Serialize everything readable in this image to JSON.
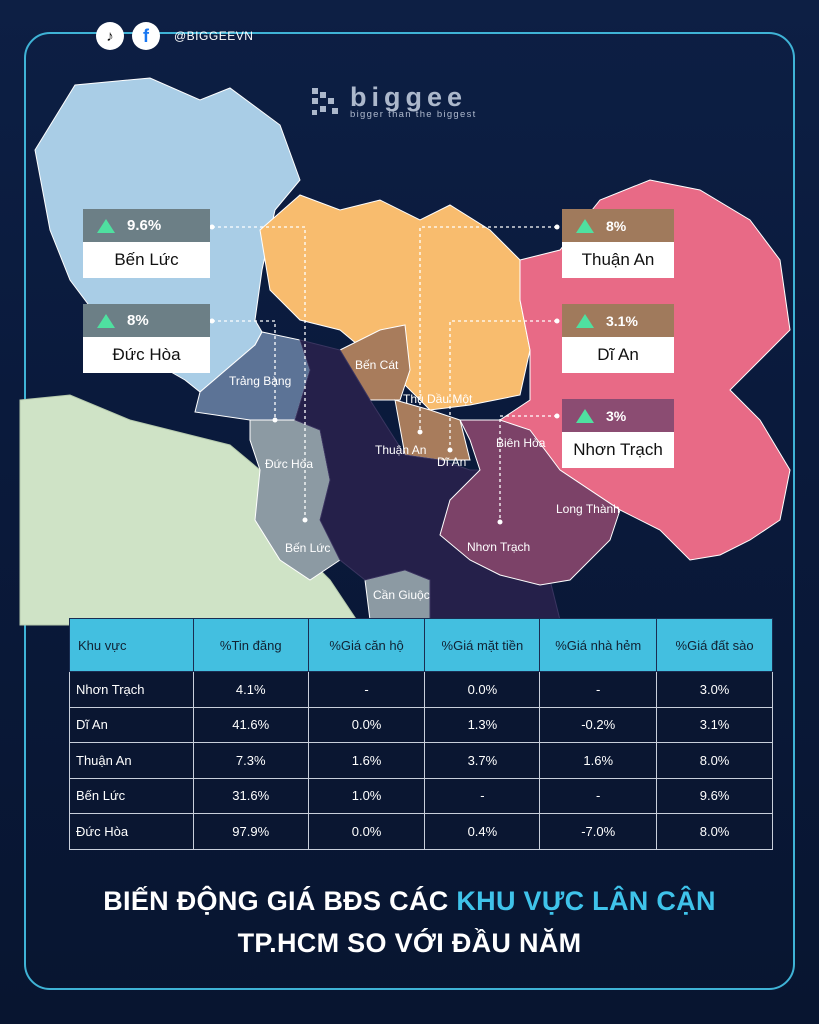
{
  "social": {
    "tiktok_icon": "tiktok-icon",
    "facebook_icon": "facebook-icon",
    "handle": "@BIGGEEVN"
  },
  "brand": {
    "name": "biggee",
    "tagline": "bigger than the biggest"
  },
  "map": {
    "labels": [
      "Trảng Bàng",
      "Bến Cát",
      "Thủ Dầu Một",
      "Thuận An",
      "Dĩ An",
      "Biên Hòa",
      "Long Thành",
      "Nhơn Trạch",
      "Đức Hòa",
      "Bến Lức",
      "Cần Giuộc"
    ],
    "colors": {
      "ben_luc_region": "#a9cde6",
      "duc_hoa_region": "#8c9aa3",
      "trang_bang_region": "#5c7396",
      "binh_duong_region": "#f8bc6e",
      "ben_cat_region": "#a87c5c",
      "hcm_region": "#25204a",
      "dong_nai_region": "#e86a86",
      "nhon_trach_region": "#7c4268",
      "long_an_region": "#cfe3c6"
    }
  },
  "cards": [
    {
      "pct": "9.6%",
      "name": "Bến Lức",
      "color": "#6c7f86"
    },
    {
      "pct": "8%",
      "name": "Đức Hòa",
      "color": "#6c7f86"
    },
    {
      "pct": "8%",
      "name": "Thuận An",
      "color": "#a07a5c"
    },
    {
      "pct": "3.1%",
      "name": "Dĩ An",
      "color": "#a07a5c"
    },
    {
      "pct": "3%",
      "name": "Nhơn Trạch",
      "color": "#8b4c72"
    }
  ],
  "table": {
    "headers": [
      "Khu vực",
      "%Tin đăng",
      "%Giá căn hộ",
      "%Giá mặt tiền",
      "%Giá nhà hẻm",
      "%Giá đất sào"
    ],
    "rows": [
      [
        "Nhơn Trạch",
        "4.1%",
        "-",
        "0.0%",
        "-",
        "3.0%"
      ],
      [
        "Dĩ An",
        "41.6%",
        "0.0%",
        "1.3%",
        "-0.2%",
        "3.1%"
      ],
      [
        "Thuận An",
        "7.3%",
        "1.6%",
        "3.7%",
        "1.6%",
        "8.0%"
      ],
      [
        "Bến Lức",
        "31.6%",
        "1.0%",
        "-",
        "-",
        "9.6%"
      ],
      [
        "Đức Hòa",
        "97.9%",
        "0.0%",
        "0.4%",
        "-7.0%",
        "8.0%"
      ]
    ]
  },
  "title": {
    "line1_pre": "BIẾN ĐỘNG GIÁ BĐS CÁC ",
    "line1_hl": "KHU VỰC LÂN CẬN",
    "line2": "TP.HCM SO VỚI ĐẦU NĂM"
  }
}
